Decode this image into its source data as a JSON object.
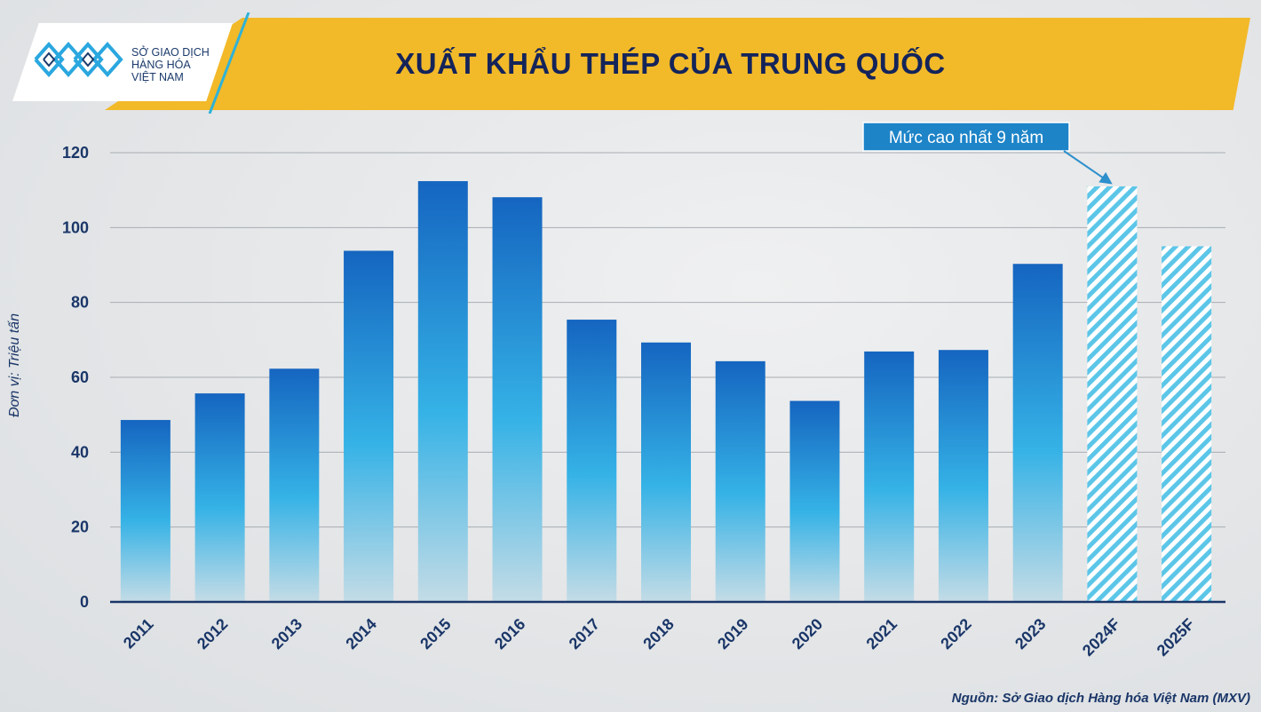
{
  "logo": {
    "line1": "SỞ GIAO DỊCH",
    "line2": "HÀNG HÓA",
    "line3": "VIỆT NAM",
    "icon": "mxv-logo-icon"
  },
  "source": "Nguồn: Sở Giao dịch Hàng hóa Việt Nam (MXV)",
  "colors": {
    "title_band": "#f2b929",
    "title_text": "#14245a",
    "bar_top": "#1565c0",
    "bar_mid": "#35b2e6",
    "forecast_stripe": "#5cc6e8"
  },
  "chart_data": {
    "type": "bar",
    "title": "XUẤT KHẨU THÉP CỦA TRUNG QUỐC",
    "ylabel": "Đơn vị: Triệu tấn",
    "xlabel": "",
    "ylim": [
      0,
      120
    ],
    "yticks": [
      0,
      20,
      40,
      60,
      80,
      100,
      120
    ],
    "grid": true,
    "categories": [
      "2011",
      "2012",
      "2013",
      "2014",
      "2015",
      "2016",
      "2017",
      "2018",
      "2019",
      "2020",
      "2021",
      "2022",
      "2023",
      "2024F",
      "2025F"
    ],
    "values": [
      48.6,
      55.7,
      62.3,
      93.8,
      112.4,
      108.1,
      75.4,
      69.3,
      64.3,
      53.7,
      66.9,
      67.3,
      90.3,
      111.0,
      95.0
    ],
    "forecast": [
      false,
      false,
      false,
      false,
      false,
      false,
      false,
      false,
      false,
      false,
      false,
      false,
      false,
      true,
      true
    ],
    "annotation": {
      "text": "Mức cao nhất 9 năm",
      "target": "2024F"
    }
  }
}
